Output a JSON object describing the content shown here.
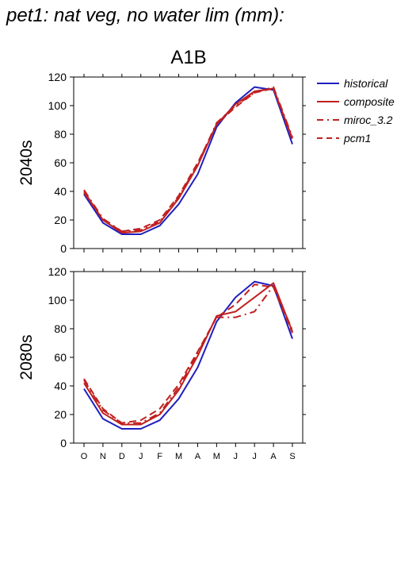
{
  "title": "pet1: nat veg, no water lim (mm):",
  "scenario_label": "A1B",
  "legend": {
    "items": [
      {
        "label": "historical",
        "color": "#1f1fbf",
        "dash": "solid"
      },
      {
        "label": "composite",
        "color": "#c02020",
        "dash": "solid"
      },
      {
        "label": "miroc_3.2",
        "color": "#c02020",
        "dash": "dashdot"
      },
      {
        "label": "pcm1",
        "color": "#c02020",
        "dash": "dashed"
      }
    ]
  },
  "chart_data": [
    {
      "type": "line",
      "panel_label": "2040s",
      "categories": [
        "O",
        "N",
        "D",
        "J",
        "F",
        "M",
        "A",
        "M",
        "J",
        "J",
        "A",
        "S"
      ],
      "ylim": [
        0,
        120
      ],
      "yticks": [
        0,
        20,
        40,
        60,
        80,
        100,
        120
      ],
      "show_xtick_labels": false,
      "series": [
        {
          "name": "historical",
          "values": [
            38,
            18,
            10,
            10,
            16,
            31,
            52,
            85,
            102,
            113,
            111,
            73
          ]
        },
        {
          "name": "composite",
          "values": [
            40,
            20,
            11,
            12,
            18,
            35,
            58,
            87,
            101,
            110,
            112,
            77
          ]
        },
        {
          "name": "miroc_3.2",
          "values": [
            41,
            21,
            12,
            13,
            19,
            36,
            59,
            88,
            100,
            109,
            113,
            78
          ]
        },
        {
          "name": "pcm1",
          "values": [
            39,
            20,
            12,
            14,
            20,
            37,
            60,
            87,
            99,
            109,
            112,
            76
          ]
        }
      ]
    },
    {
      "type": "line",
      "panel_label": "2080s",
      "categories": [
        "O",
        "N",
        "D",
        "J",
        "F",
        "M",
        "A",
        "M",
        "J",
        "J",
        "A",
        "S"
      ],
      "ylim": [
        0,
        120
      ],
      "yticks": [
        0,
        20,
        40,
        60,
        80,
        100,
        120
      ],
      "show_xtick_labels": true,
      "series": [
        {
          "name": "historical",
          "values": [
            38,
            17,
            10,
            10,
            16,
            31,
            53,
            85,
            102,
            113,
            110,
            73
          ]
        },
        {
          "name": "composite",
          "values": [
            42,
            21,
            13,
            13,
            20,
            37,
            61,
            89,
            92,
            102,
            112,
            78
          ]
        },
        {
          "name": "miroc_3.2",
          "values": [
            44,
            23,
            14,
            14,
            21,
            39,
            63,
            88,
            88,
            92,
            110,
            79
          ]
        },
        {
          "name": "pcm1",
          "values": [
            45,
            24,
            14,
            16,
            24,
            41,
            64,
            88,
            97,
            111,
            109,
            77
          ]
        }
      ]
    }
  ]
}
